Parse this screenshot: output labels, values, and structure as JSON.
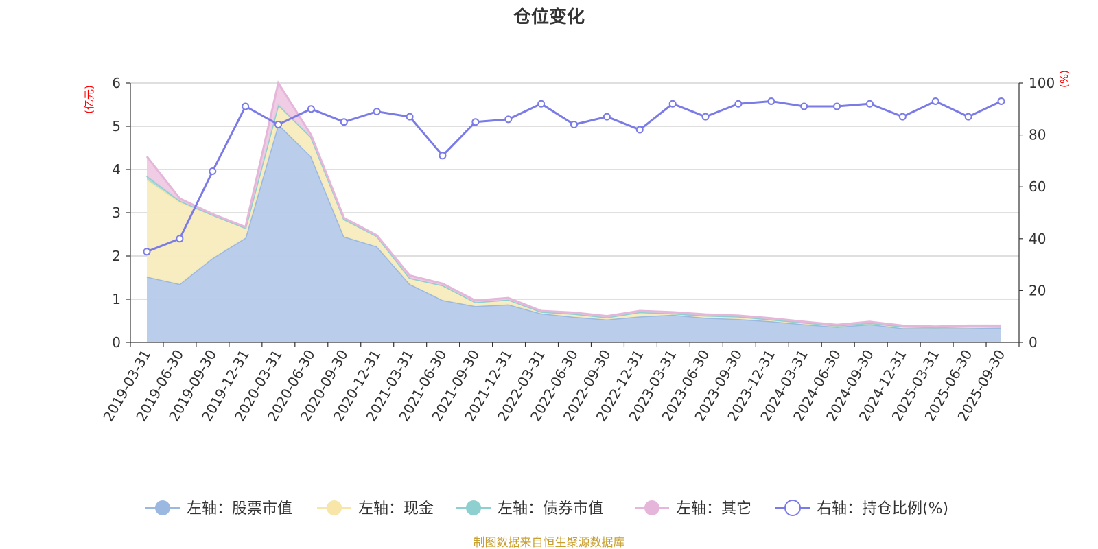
{
  "chart_data": {
    "type": "area",
    "title": "仓位变化",
    "left_unit": "(亿元)",
    "right_unit": "(%)",
    "categories": [
      "2019-03-31",
      "2019-06-30",
      "2019-09-30",
      "2019-12-31",
      "2020-03-31",
      "2020-06-30",
      "2020-09-30",
      "2020-12-31",
      "2021-03-31",
      "2021-06-30",
      "2021-09-30",
      "2021-12-31",
      "2022-03-31",
      "2022-06-30",
      "2022-09-30",
      "2022-12-31",
      "2023-03-31",
      "2023-06-30",
      "2023-09-30",
      "2023-12-31",
      "2024-03-31",
      "2024-06-30",
      "2024-09-30",
      "2024-12-31",
      "2025-03-31",
      "2025-06-30",
      "2025-09-30"
    ],
    "left_axis": {
      "min": 0,
      "max": 6,
      "ticks": [
        0,
        1,
        2,
        3,
        4,
        5,
        6
      ]
    },
    "right_axis": {
      "min": 0,
      "max": 100,
      "ticks": [
        0,
        20,
        40,
        60,
        80,
        100
      ]
    },
    "series": [
      {
        "name": "股票市值",
        "axis": "left",
        "stack": "total",
        "color": "#9bb8e0",
        "fill": "#b6cbea",
        "values": [
          1.52,
          1.35,
          1.95,
          2.42,
          5.05,
          4.3,
          2.45,
          2.22,
          1.35,
          0.98,
          0.84,
          0.88,
          0.67,
          0.59,
          0.53,
          0.6,
          0.64,
          0.57,
          0.54,
          0.49,
          0.42,
          0.36,
          0.42,
          0.33,
          0.33,
          0.33,
          0.34
        ]
      },
      {
        "name": "现金",
        "axis": "left",
        "stack": "total",
        "color": "#f7e6a8",
        "fill": "#f8ecbd",
        "values": [
          2.25,
          1.9,
          1.0,
          0.23,
          0.45,
          0.45,
          0.4,
          0.24,
          0.14,
          0.34,
          0.09,
          0.11,
          0.04,
          0.07,
          0.05,
          0.1,
          0.03,
          0.05,
          0.06,
          0.04,
          0.04,
          0.03,
          0.03,
          0.04,
          0.02,
          0.04,
          0.03
        ]
      },
      {
        "name": "债券市值",
        "axis": "left",
        "stack": "total",
        "color": "#8ecfcf",
        "fill": "#a7dada",
        "values": [
          0.08,
          0.03,
          0,
          0,
          0,
          0,
          0,
          0,
          0,
          0,
          0,
          0,
          0,
          0,
          0,
          0,
          0,
          0,
          0,
          0,
          0,
          0,
          0,
          0,
          0,
          0,
          0
        ]
      },
      {
        "name": "其它",
        "axis": "left",
        "stack": "total",
        "color": "#e6b6da",
        "fill": "#efc9e4",
        "values": [
          0.45,
          0.05,
          0.02,
          0.02,
          0.5,
          0.05,
          0.03,
          0.02,
          0.06,
          0.04,
          0.04,
          0.04,
          0.02,
          0.03,
          0.03,
          0.03,
          0.03,
          0.03,
          0.02,
          0.03,
          0.02,
          0.02,
          0.03,
          0.02,
          0.02,
          0.02,
          0.02
        ]
      },
      {
        "name": "持仓比例(%)",
        "axis": "right",
        "type": "line",
        "color": "#7b7be8",
        "values": [
          35,
          40,
          66,
          91,
          84,
          90,
          85,
          89,
          87,
          72,
          85,
          86,
          92,
          84,
          87,
          82,
          92,
          87,
          92,
          93,
          91,
          91,
          92,
          87,
          93,
          87,
          93
        ]
      }
    ],
    "legend": {
      "position": "bottom",
      "items": [
        {
          "label": "左轴：股票市值",
          "color": "#9bb8e0",
          "marker": "filled-circle"
        },
        {
          "label": "左轴：现金",
          "color": "#f7e6a8",
          "marker": "filled-circle"
        },
        {
          "label": "左轴：债券市值",
          "color": "#8ecfcf",
          "marker": "filled-circle"
        },
        {
          "label": "左轴：其它",
          "color": "#e6b6da",
          "marker": "filled-circle"
        },
        {
          "label": "右轴：持仓比例(%)",
          "color": "#7b7be8",
          "marker": "hollow-circle"
        }
      ]
    },
    "grid": true
  },
  "footer": {
    "source": "制图数据来自恒生聚源数据库"
  }
}
